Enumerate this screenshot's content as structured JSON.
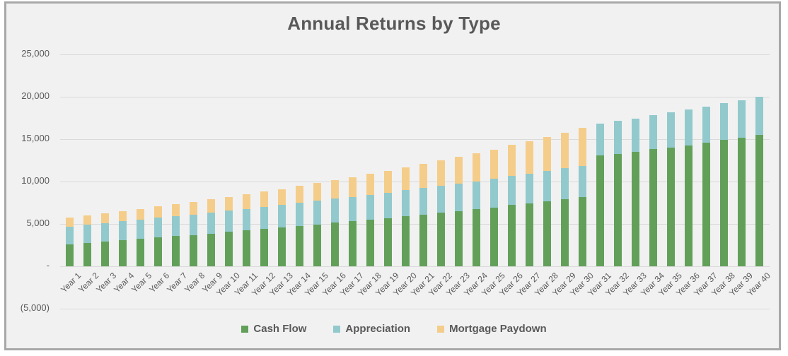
{
  "title": "Annual Returns by Type",
  "colors": {
    "cash_flow": "#62a05a",
    "appreciation": "#92c9cc",
    "mortgage_paydown": "#f5cd8a",
    "text": "#595959",
    "gridline": "#dadada",
    "chart_background": "#f1f1f1",
    "frame_border": "#a8a8a8"
  },
  "chart_data": {
    "type": "bar",
    "stacked": true,
    "title": "Annual Returns by Type",
    "xlabel": "",
    "ylabel": "",
    "grid": true,
    "legend_position": "bottom",
    "ylim": [
      -5000,
      25000
    ],
    "y_tick_interval": 5000,
    "y_tick_labels": [
      "25,000",
      "20,000",
      "15,000",
      "10,000",
      "5,000",
      "-",
      "(5,000)"
    ],
    "categories": [
      "Year 1",
      "Year 2",
      "Year 3",
      "Year 4",
      "Year 5",
      "Year 6",
      "Year 7",
      "Year 8",
      "Year 9",
      "Year 10",
      "Year 11",
      "Year 12",
      "Year 13",
      "Year 14",
      "Year 15",
      "Year 16",
      "Year 17",
      "Year 18",
      "Year 19",
      "Year 20",
      "Year 21",
      "Year 22",
      "Year 23",
      "Year 24",
      "Year 25",
      "Year 26",
      "Year 27",
      "Year 28",
      "Year 29",
      "Year 30",
      "Year 31",
      "Year 32",
      "Year 33",
      "Year 34",
      "Year 35",
      "Year 36",
      "Year 37",
      "Year 38",
      "Year 39",
      "Year 40"
    ],
    "series": [
      {
        "name": "Cash Flow",
        "color": "#62a05a",
        "values": [
          2600,
          2760,
          2920,
          3080,
          3240,
          3400,
          3550,
          3700,
          3870,
          4050,
          4210,
          4390,
          4560,
          4750,
          4940,
          5140,
          5300,
          5500,
          5700,
          5910,
          6110,
          6330,
          6530,
          6730,
          6950,
          7220,
          7410,
          7650,
          7890,
          8140,
          13050,
          13280,
          13500,
          13800,
          14030,
          14280,
          14580,
          14920,
          15170,
          15500
        ]
      },
      {
        "name": "Appreciation",
        "color": "#92c9cc",
        "values": [
          2100,
          2140,
          2180,
          2230,
          2270,
          2320,
          2360,
          2410,
          2460,
          2510,
          2560,
          2610,
          2660,
          2720,
          2770,
          2830,
          2880,
          2940,
          3000,
          3060,
          3120,
          3180,
          3250,
          3310,
          3380,
          3450,
          3510,
          3580,
          3660,
          3730,
          3800,
          3880,
          3950,
          4030,
          4110,
          4190,
          4280,
          4360,
          4450,
          4540
        ]
      },
      {
        "name": "Mortgage Paydown",
        "color": "#f5cd8a",
        "values": [
          1050,
          1105,
          1160,
          1220,
          1280,
          1345,
          1415,
          1485,
          1560,
          1640,
          1725,
          1810,
          1905,
          2000,
          2100,
          2210,
          2320,
          2440,
          2565,
          2695,
          2830,
          2975,
          3125,
          3285,
          3455,
          3630,
          3815,
          4010,
          4215,
          4430,
          0,
          0,
          0,
          0,
          0,
          0,
          0,
          0,
          0,
          0
        ]
      }
    ]
  }
}
